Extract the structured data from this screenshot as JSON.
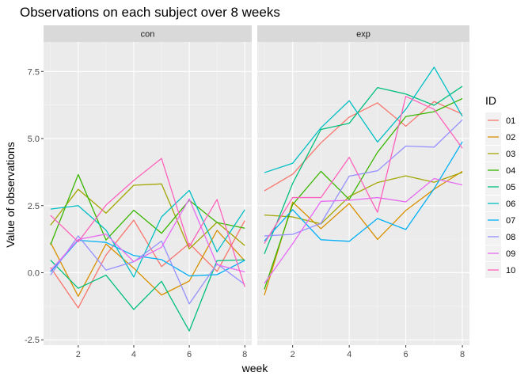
{
  "chart_data": {
    "type": "line",
    "title": "Observations on each subject over 8 weeks",
    "xlabel": "week",
    "ylabel": "Value of observations",
    "xlim": [
      0.75,
      8.25
    ],
    "ylim": [
      -2.7,
      8.6
    ],
    "x_ticks": [
      2,
      4,
      6,
      8
    ],
    "y_ticks": [
      -2.5,
      0.0,
      2.5,
      5.0,
      7.5
    ],
    "y_tick_labels": [
      "-2.5",
      "0.0",
      "2.5",
      "5.0",
      "7.5"
    ],
    "x": [
      1,
      2,
      3,
      4,
      5,
      6,
      7,
      8
    ],
    "grid": true,
    "legend": {
      "title": "ID",
      "position": "right",
      "entries": [
        "01",
        "02",
        "03",
        "04",
        "05",
        "06",
        "07",
        "08",
        "09",
        "10"
      ]
    },
    "colors": {
      "01": "#F8766D",
      "02": "#D89000",
      "03": "#A3A500",
      "04": "#39B600",
      "05": "#00BF7D",
      "06": "#00BFC4",
      "07": "#00B0F6",
      "08": "#9590FF",
      "09": "#E76BF3",
      "10": "#FF62BC"
    },
    "panels": [
      {
        "label": "con",
        "series": [
          {
            "id": "01",
            "values": [
              0.2,
              -1.31,
              0.66,
              1.96,
              0.23,
              1.09,
              0.05,
              1.94
            ]
          },
          {
            "id": "02",
            "values": [
              1.13,
              -0.88,
              1.07,
              0.17,
              -0.83,
              -0.31,
              1.58,
              0.44
            ]
          },
          {
            "id": "03",
            "values": [
              1.77,
              3.11,
              2.22,
              3.26,
              3.31,
              0.89,
              1.88,
              1.01
            ]
          },
          {
            "id": "04",
            "values": [
              1.04,
              3.66,
              1.22,
              2.33,
              1.47,
              2.7,
              1.87,
              1.66
            ]
          },
          {
            "id": "05",
            "values": [
              0.47,
              -0.58,
              -0.09,
              -1.37,
              -0.32,
              -2.17,
              0.45,
              0.48
            ]
          },
          {
            "id": "06",
            "values": [
              2.37,
              2.5,
              1.59,
              -0.16,
              2.08,
              3.07,
              0.78,
              2.35
            ]
          },
          {
            "id": "07",
            "values": [
              0.03,
              1.21,
              1.13,
              0.64,
              0.49,
              -0.12,
              -0.07,
              0.46
            ]
          },
          {
            "id": "08",
            "values": [
              -0.09,
              1.37,
              0.1,
              0.41,
              1.18,
              -1.16,
              0.33,
              -0.44
            ]
          },
          {
            "id": "09",
            "values": [
              0.08,
              1.24,
              1.44,
              0.41,
              0.95,
              2.75,
              0.3,
              0.03
            ]
          },
          {
            "id": "10",
            "values": [
              2.14,
              1.15,
              2.52,
              3.44,
              4.26,
              0.97,
              2.73,
              -0.53
            ]
          }
        ]
      },
      {
        "label": "exp",
        "series": [
          {
            "id": "01",
            "values": [
              3.05,
              3.67,
              4.84,
              5.8,
              6.33,
              5.46,
              6.38,
              5.91
            ]
          },
          {
            "id": "02",
            "values": [
              -0.84,
              2.63,
              1.64,
              2.58,
              1.24,
              2.32,
              3.11,
              3.78
            ]
          },
          {
            "id": "03",
            "values": [
              2.15,
              2.08,
              1.82,
              2.84,
              3.36,
              3.61,
              3.37,
              3.74
            ]
          },
          {
            "id": "04",
            "values": [
              -0.62,
              2.54,
              3.78,
              2.73,
              4.49,
              5.82,
              6.0,
              6.49
            ]
          },
          {
            "id": "05",
            "values": [
              0.7,
              3.33,
              5.34,
              5.57,
              6.9,
              6.66,
              6.24,
              6.95
            ]
          },
          {
            "id": "06",
            "values": [
              3.73,
              4.08,
              5.4,
              6.41,
              4.87,
              6.09,
              7.66,
              5.83
            ]
          },
          {
            "id": "07",
            "values": [
              1.18,
              2.35,
              1.23,
              1.17,
              2.02,
              1.61,
              3.13,
              4.88
            ]
          },
          {
            "id": "08",
            "values": [
              1.37,
              1.43,
              1.84,
              3.6,
              3.8,
              4.72,
              4.68,
              5.7
            ]
          },
          {
            "id": "09",
            "values": [
              -0.4,
              1.08,
              2.66,
              2.7,
              2.8,
              2.64,
              3.51,
              3.27
            ]
          },
          {
            "id": "10",
            "values": [
              1.09,
              2.8,
              2.8,
              4.3,
              2.25,
              6.57,
              6.09,
              4.64
            ]
          }
        ]
      }
    ]
  }
}
